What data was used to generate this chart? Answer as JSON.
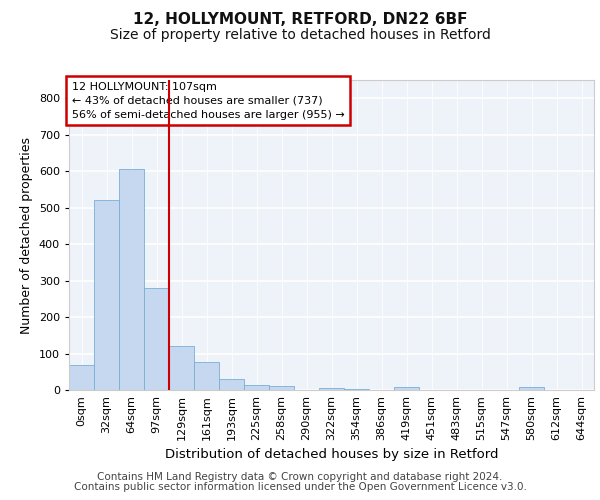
{
  "title_line1": "12, HOLLYMOUNT, RETFORD, DN22 6BF",
  "title_line2": "Size of property relative to detached houses in Retford",
  "xlabel": "Distribution of detached houses by size in Retford",
  "ylabel": "Number of detached properties",
  "footnote_line1": "Contains HM Land Registry data © Crown copyright and database right 2024.",
  "footnote_line2": "Contains public sector information licensed under the Open Government Licence v3.0.",
  "bar_labels": [
    "0sqm",
    "32sqm",
    "64sqm",
    "97sqm",
    "129sqm",
    "161sqm",
    "193sqm",
    "225sqm",
    "258sqm",
    "290sqm",
    "322sqm",
    "354sqm",
    "386sqm",
    "419sqm",
    "451sqm",
    "483sqm",
    "515sqm",
    "547sqm",
    "580sqm",
    "612sqm",
    "644sqm"
  ],
  "bar_values": [
    68,
    520,
    605,
    280,
    120,
    78,
    30,
    15,
    10,
    0,
    5,
    2,
    0,
    8,
    0,
    0,
    0,
    0,
    8,
    0,
    0
  ],
  "bar_color": "#c5d8ef",
  "bar_edge_color": "#7aafd4",
  "vline_color": "#cc0000",
  "vline_x_index": 3,
  "annotation_text": "12 HOLLYMOUNT: 107sqm\n← 43% of detached houses are smaller (737)\n56% of semi-detached houses are larger (955) →",
  "annotation_box_color": "#cc0000",
  "ylim": [
    0,
    850
  ],
  "yticks": [
    0,
    100,
    200,
    300,
    400,
    500,
    600,
    700,
    800
  ],
  "background_color": "#eef2f9",
  "grid_color": "#ffffff",
  "title_fontsize": 11,
  "subtitle_fontsize": 10,
  "axis_label_fontsize": 9,
  "tick_fontsize": 8,
  "annotation_fontsize": 8,
  "footnote_fontsize": 7.5
}
